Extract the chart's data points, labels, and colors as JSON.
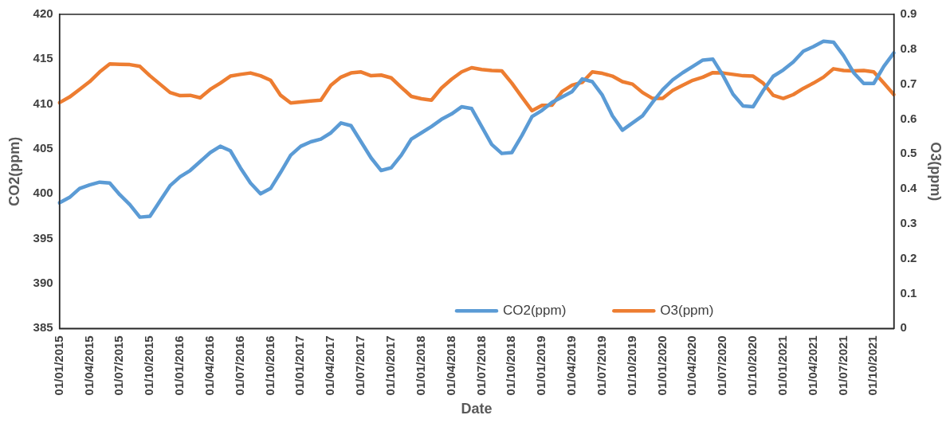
{
  "chart_data": {
    "type": "line",
    "xlabel": "Date",
    "ylabel": "CO2(ppm)",
    "y2label": "O3(ppm)",
    "categories": [
      "01/01/2015",
      null,
      null,
      "01/04/2015",
      null,
      null,
      "01/07/2015",
      null,
      null,
      "01/10/2015",
      null,
      null,
      "01/01/2016",
      null,
      null,
      "01/04/2016",
      null,
      null,
      "01/07/2016",
      null,
      null,
      "01/10/2016",
      null,
      null,
      "01/01/2017",
      null,
      null,
      "01/04/2017",
      null,
      null,
      "01/07/2017",
      null,
      null,
      "01/10/2017",
      null,
      null,
      "01/01/2018",
      null,
      null,
      "01/04/2018",
      null,
      null,
      "01/07/2018",
      null,
      null,
      "01/10/2018",
      null,
      null,
      "01/01/2019",
      null,
      null,
      "01/04/2019",
      null,
      null,
      "01/07/2019",
      null,
      null,
      "01/10/2019",
      null,
      null,
      "01/01/2020",
      null,
      null,
      "01/04/2020",
      null,
      null,
      "01/07/2020",
      null,
      null,
      "01/10/2020",
      null,
      null,
      "01/01/2021",
      null,
      null,
      "01/04/2021",
      null,
      null,
      "01/07/2021",
      null,
      null,
      "01/10/2021",
      null,
      null
    ],
    "series": [
      {
        "name": "CO2(ppm)",
        "color": "#5b9bd5",
        "values": [
          399.0,
          399.6,
          400.6,
          401.0,
          401.3,
          401.2,
          399.9,
          398.8,
          397.4,
          397.5,
          399.2,
          400.9,
          401.9,
          402.6,
          403.6,
          404.6,
          405.3,
          404.8,
          402.9,
          401.2,
          400.0,
          400.6,
          402.4,
          404.3,
          405.3,
          405.8,
          406.1,
          406.8,
          407.9,
          407.6,
          405.8,
          404.0,
          402.6,
          402.9,
          404.3,
          406.1,
          406.8,
          407.5,
          408.3,
          408.9,
          409.7,
          409.5,
          407.5,
          405.5,
          404.5,
          404.6,
          406.5,
          408.6,
          409.3,
          410.2,
          410.8,
          411.4,
          412.8,
          412.5,
          411.0,
          408.7,
          407.1,
          407.9,
          408.7,
          410.2,
          411.6,
          412.7,
          413.5,
          414.2,
          414.9,
          415.0,
          413.2,
          411.1,
          409.8,
          409.7,
          411.5,
          413.1,
          413.8,
          414.7,
          415.9,
          416.4,
          417.0,
          416.9,
          415.4,
          413.5,
          412.3,
          412.3,
          414.2,
          415.7
        ]
      },
      {
        "name": "O3(ppm)",
        "color": "#ed7d31",
        "axis": "y2",
        "values": [
          0.647,
          0.663,
          0.685,
          0.707,
          0.735,
          0.758,
          0.757,
          0.756,
          0.751,
          0.724,
          0.7,
          0.676,
          0.667,
          0.668,
          0.661,
          0.685,
          0.703,
          0.723,
          0.728,
          0.732,
          0.724,
          0.711,
          0.668,
          0.646,
          0.649,
          0.652,
          0.654,
          0.697,
          0.72,
          0.732,
          0.735,
          0.724,
          0.726,
          0.718,
          0.691,
          0.665,
          0.658,
          0.654,
          0.689,
          0.714,
          0.735,
          0.747,
          0.742,
          0.739,
          0.738,
          0.703,
          0.663,
          0.624,
          0.639,
          0.64,
          0.679,
          0.697,
          0.705,
          0.735,
          0.731,
          0.723,
          0.707,
          0.7,
          0.676,
          0.659,
          0.659,
          0.682,
          0.697,
          0.711,
          0.72,
          0.733,
          0.732,
          0.728,
          0.724,
          0.723,
          0.703,
          0.668,
          0.659,
          0.67,
          0.688,
          0.703,
          0.72,
          0.744,
          0.739,
          0.738,
          0.739,
          0.735,
          0.703,
          0.67
        ]
      }
    ],
    "ylim": [
      385,
      420
    ],
    "yticks": [
      385,
      390,
      395,
      400,
      405,
      410,
      415,
      420
    ],
    "y2lim": [
      0,
      0.9
    ],
    "y2ticks": [
      0,
      0.1,
      0.2,
      0.3,
      0.4,
      0.5,
      0.6,
      0.7,
      0.8,
      0.9
    ],
    "legend": "bottom",
    "grid": false,
    "marker": "none",
    "line_style": "solid"
  }
}
